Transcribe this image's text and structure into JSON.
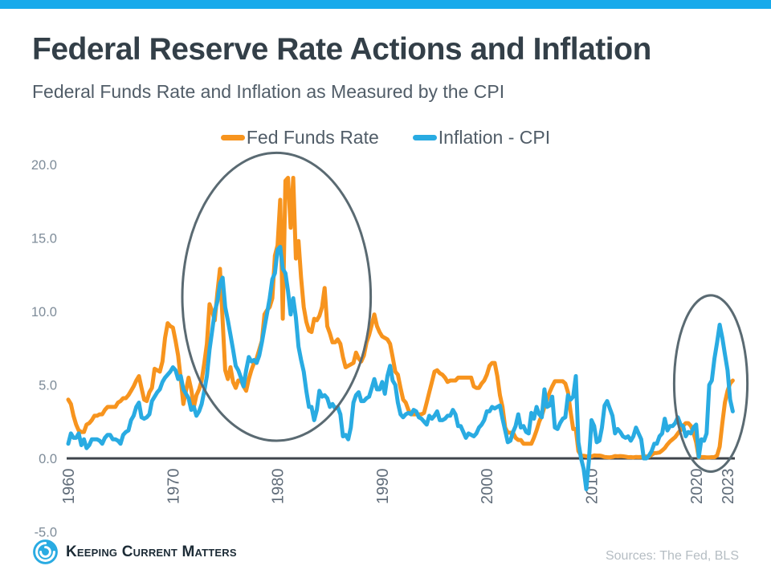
{
  "page": {
    "background": "#ffffff",
    "accent_bar_color": "#18AAEB"
  },
  "header": {
    "title": "Federal Reserve Rate Actions and Inflation",
    "subtitle": "Federal Funds Rate and Inflation as Measured by the CPI"
  },
  "legend": [
    {
      "label": "Fed Funds Rate",
      "color": "#F7941E"
    },
    {
      "label": "Inflation - CPI",
      "color": "#29ABE2"
    }
  ],
  "footer": {
    "logo_text": "Keeping Current Matters",
    "sources": "Sources: The Fed, BLS"
  },
  "chart_data": {
    "type": "line",
    "title": "Federal Reserve Rate Actions and Inflation",
    "xlabel": "",
    "ylabel": "",
    "grid": false,
    "legend_position": "top-center",
    "ylim": [
      -5,
      20
    ],
    "x_start": 1960,
    "x_step": 0.25,
    "x_ticks": [
      1960,
      1970,
      1980,
      1990,
      2000,
      2010,
      2020,
      2023
    ],
    "y_ticks": [
      20,
      15,
      10,
      5,
      0,
      -5
    ],
    "y_tick_labels": [
      "20.0",
      "15.0",
      "10.0",
      "5.0",
      "0.0",
      "-5.0"
    ],
    "axis_color": "#3E444B",
    "tick_label_color_y": "#7E8C99",
    "tick_label_color_x": "#616D7A",
    "annotation_color": "#5A6A72",
    "annotations": [
      {
        "shape": "ellipse",
        "x_center": 1979.9,
        "y_center": 11.0,
        "x_radius": 9.0,
        "y_radius": 9.8
      },
      {
        "shape": "ellipse",
        "x_center": 2021.4,
        "y_center": 5.1,
        "x_radius": 3.5,
        "y_radius": 6.0
      }
    ],
    "series": [
      {
        "name": "Fed Funds Rate",
        "color": "#F7941E",
        "values": [
          4.0,
          3.7,
          2.9,
          2.3,
          1.9,
          1.8,
          1.8,
          2.3,
          2.4,
          2.6,
          2.9,
          2.9,
          3.0,
          3.0,
          3.3,
          3.5,
          3.5,
          3.5,
          3.5,
          3.8,
          3.9,
          4.1,
          4.1,
          4.3,
          4.6,
          4.9,
          5.3,
          5.6,
          4.8,
          4.0,
          3.9,
          4.5,
          4.8,
          6.1,
          6.0,
          5.9,
          6.6,
          8.2,
          9.2,
          9.0,
          8.9,
          8.0,
          7.0,
          5.4,
          3.7,
          4.6,
          5.5,
          4.7,
          3.5,
          4.3,
          4.7,
          5.3,
          6.5,
          7.8,
          10.5,
          10.0,
          9.4,
          11.3,
          12.9,
          9.4,
          6.0,
          5.4,
          6.2,
          5.2,
          4.8,
          5.3,
          5.3,
          4.9,
          4.6,
          5.4,
          6.0,
          6.5,
          6.8,
          7.4,
          8.0,
          9.8,
          10.1,
          10.3,
          10.9,
          13.8,
          14.5,
          17.6,
          9.5,
          18.9,
          19.1,
          15.7,
          19.1,
          13.6,
          14.8,
          12.3,
          10.3,
          9.3,
          8.7,
          8.6,
          9.5,
          9.4,
          9.7,
          10.3,
          11.6,
          9.0,
          8.5,
          7.9,
          7.9,
          8.1,
          7.8,
          6.9,
          6.2,
          6.3,
          6.4,
          6.5,
          7.2,
          6.8,
          6.6,
          7.0,
          7.9,
          8.4,
          9.1,
          9.8,
          9.0,
          8.6,
          8.3,
          8.2,
          8.1,
          7.8,
          6.9,
          5.9,
          5.7,
          4.8,
          4.0,
          3.8,
          3.3,
          3.0,
          3.0,
          3.0,
          3.0,
          3.0,
          3.1,
          3.8,
          4.5,
          5.2,
          5.9,
          6.0,
          5.8,
          5.7,
          5.5,
          5.2,
          5.3,
          5.3,
          5.3,
          5.5,
          5.5,
          5.5,
          5.5,
          5.5,
          5.5,
          4.9,
          4.8,
          4.8,
          5.1,
          5.3,
          5.7,
          6.3,
          6.5,
          6.5,
          5.6,
          4.3,
          3.5,
          2.1,
          1.75,
          1.75,
          1.75,
          1.4,
          1.25,
          1.25,
          1.0,
          1.0,
          1.0,
          1.0,
          1.4,
          1.9,
          2.5,
          2.9,
          3.5,
          4.0,
          4.5,
          4.9,
          5.25,
          5.25,
          5.25,
          5.25,
          5.1,
          4.5,
          3.2,
          2.0,
          2.0,
          0.5,
          0.2,
          0.18,
          0.15,
          0.12,
          0.13,
          0.2,
          0.19,
          0.19,
          0.16,
          0.1,
          0.08,
          0.07,
          0.1,
          0.16,
          0.14,
          0.16,
          0.14,
          0.12,
          0.08,
          0.09,
          0.07,
          0.1,
          0.09,
          0.1,
          0.11,
          0.13,
          0.14,
          0.24,
          0.36,
          0.37,
          0.4,
          0.54,
          0.7,
          0.95,
          1.15,
          1.3,
          1.45,
          1.7,
          1.92,
          2.2,
          2.4,
          2.4,
          2.2,
          1.75,
          1.1,
          0.06,
          0.09,
          0.09,
          0.07,
          0.07,
          0.08,
          0.08,
          0.2,
          0.8,
          2.4,
          3.8,
          4.6,
          5.1,
          5.3
        ]
      },
      {
        "name": "Inflation - CPI",
        "color": "#29ABE2",
        "values": [
          1.0,
          1.7,
          1.4,
          1.4,
          1.7,
          0.9,
          1.3,
          0.7,
          0.9,
          1.3,
          1.3,
          1.3,
          1.2,
          1.0,
          1.4,
          1.6,
          1.6,
          1.3,
          1.3,
          1.2,
          1.0,
          1.6,
          1.8,
          1.9,
          2.6,
          2.9,
          3.5,
          3.8,
          2.8,
          2.7,
          2.8,
          3.0,
          3.9,
          4.2,
          4.5,
          4.7,
          5.2,
          5.5,
          5.7,
          5.9,
          6.2,
          6.0,
          5.4,
          5.6,
          4.7,
          4.4,
          4.1,
          3.3,
          3.5,
          2.9,
          3.2,
          3.7,
          4.6,
          5.6,
          7.4,
          8.7,
          10.0,
          10.7,
          11.9,
          12.3,
          10.3,
          9.4,
          8.4,
          7.4,
          6.3,
          6.0,
          5.5,
          4.9,
          6.0,
          6.9,
          6.6,
          6.7,
          6.5,
          7.0,
          7.9,
          8.9,
          9.9,
          10.9,
          12.2,
          12.6,
          14.2,
          14.4,
          12.9,
          12.6,
          11.4,
          9.8,
          10.9,
          9.6,
          7.6,
          6.7,
          5.9,
          4.6,
          3.5,
          3.5,
          2.6,
          3.3,
          4.6,
          4.2,
          4.3,
          4.1,
          3.5,
          3.7,
          3.4,
          3.5,
          3.0,
          1.5,
          1.6,
          1.3,
          2.1,
          3.8,
          4.3,
          4.5,
          3.9,
          3.9,
          4.1,
          4.2,
          4.8,
          5.4,
          4.7,
          4.7,
          5.2,
          4.4,
          5.6,
          6.3,
          5.3,
          5.0,
          3.8,
          3.0,
          2.8,
          3.0,
          3.1,
          3.0,
          3.3,
          3.2,
          2.8,
          2.7,
          2.5,
          2.3,
          2.9,
          2.7,
          2.9,
          3.2,
          2.6,
          2.6,
          2.7,
          2.9,
          2.9,
          3.3,
          3.0,
          2.2,
          2.2,
          1.8,
          1.4,
          1.7,
          1.6,
          1.5,
          1.7,
          2.1,
          2.3,
          2.6,
          3.2,
          3.2,
          3.5,
          3.4,
          3.5,
          3.6,
          2.7,
          1.9,
          1.1,
          1.2,
          1.8,
          2.2,
          3.0,
          2.1,
          2.2,
          1.8,
          1.7,
          3.1,
          2.7,
          3.5,
          3.0,
          2.8,
          4.7,
          3.5,
          3.6,
          4.2,
          2.1,
          2.0,
          2.4,
          2.7,
          2.8,
          4.3,
          4.0,
          4.2,
          5.6,
          1.1,
          0.0,
          -0.7,
          -2.1,
          -0.2,
          2.6,
          2.2,
          1.1,
          1.2,
          2.1,
          3.6,
          3.9,
          3.4,
          2.9,
          1.7,
          2.0,
          1.8,
          1.5,
          1.4,
          1.5,
          1.2,
          1.5,
          2.1,
          1.7,
          1.3,
          0.0,
          0.0,
          0.2,
          0.5,
          1.0,
          1.0,
          1.5,
          1.7,
          2.7,
          1.9,
          2.2,
          2.2,
          2.4,
          2.8,
          2.3,
          2.2,
          1.5,
          1.8,
          1.7,
          2.1,
          2.3,
          0.1,
          1.3,
          1.2,
          1.7,
          5.0,
          5.3,
          6.8,
          7.9,
          9.1,
          8.2,
          7.1,
          6.0,
          4.0,
          3.2
        ]
      }
    ]
  }
}
